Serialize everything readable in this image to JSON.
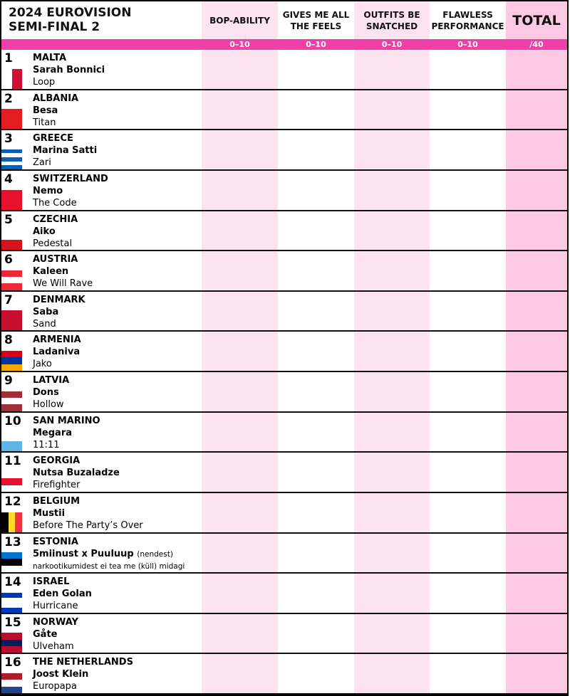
{
  "header": {
    "title_lines": [
      "2024 EUROVISION",
      "SEMI-FINAL 2"
    ]
  },
  "columns": [
    {
      "label": "BOP-ABILITY",
      "range": "0–10"
    },
    {
      "label": "GIVES ME ALL THE FEELS",
      "range": "0–10"
    },
    {
      "label": "OUTFITS BE SNATCHED",
      "range": "0–10"
    },
    {
      "label": "FLAWLESS PERFORMANCE",
      "range": "0–10"
    },
    {
      "label": "TOTAL",
      "range": "/40"
    }
  ],
  "entries": [
    {
      "number": 1,
      "country": "MALTA",
      "artist": "Sarah Bonnici",
      "song": "Loop"
    },
    {
      "number": 2,
      "country": "ALBANIA",
      "artist": "Besa",
      "song": "Titan"
    },
    {
      "number": 3,
      "country": "GREECE",
      "artist": "Marina Satti",
      "song": "Zari"
    },
    {
      "number": 4,
      "country": "SWITZERLAND",
      "artist": "Nemo",
      "song": "The Code"
    },
    {
      "number": 5,
      "country": "CZECHIA",
      "artist": "Aiko",
      "song": "Pedestal"
    },
    {
      "number": 6,
      "country": "AUSTRIA",
      "artist": "Kaleen",
      "song": "We Will Rave"
    },
    {
      "number": 7,
      "country": "DENMARK",
      "artist": "Saba",
      "song": "Sand"
    },
    {
      "number": 8,
      "country": "ARMENIA",
      "artist": "Ladaniva",
      "song": "Jako"
    },
    {
      "number": 9,
      "country": "LATVIA",
      "artist": "Dons",
      "song": "Hollow"
    },
    {
      "number": 10,
      "country": "SAN MARINO",
      "artist": "Megara",
      "song": "11:11"
    },
    {
      "number": 11,
      "country": "GEORGIA",
      "artist": "Nutsa Buzaladze",
      "song": "Firefighter"
    },
    {
      "number": 12,
      "country": "BELGIUM",
      "artist": "Mustii",
      "song": "Before The Party’s Over"
    },
    {
      "number": 13,
      "country": "ESTONIA",
      "artist": "5miinust x Puuluup",
      "artist_note": "(nendest)",
      "song": "narkootikumidest ei tea me (küll) midagi"
    },
    {
      "number": 14,
      "country": "ISRAEL",
      "artist": "Eden Golan",
      "song": "Hurricane"
    },
    {
      "number": 15,
      "country": "NORWAY",
      "artist": "Gåte",
      "song": "Ulveham"
    },
    {
      "number": 16,
      "country": "THE NETHERLANDS",
      "artist": "Joost Klein",
      "song": "Europapa"
    }
  ]
}
